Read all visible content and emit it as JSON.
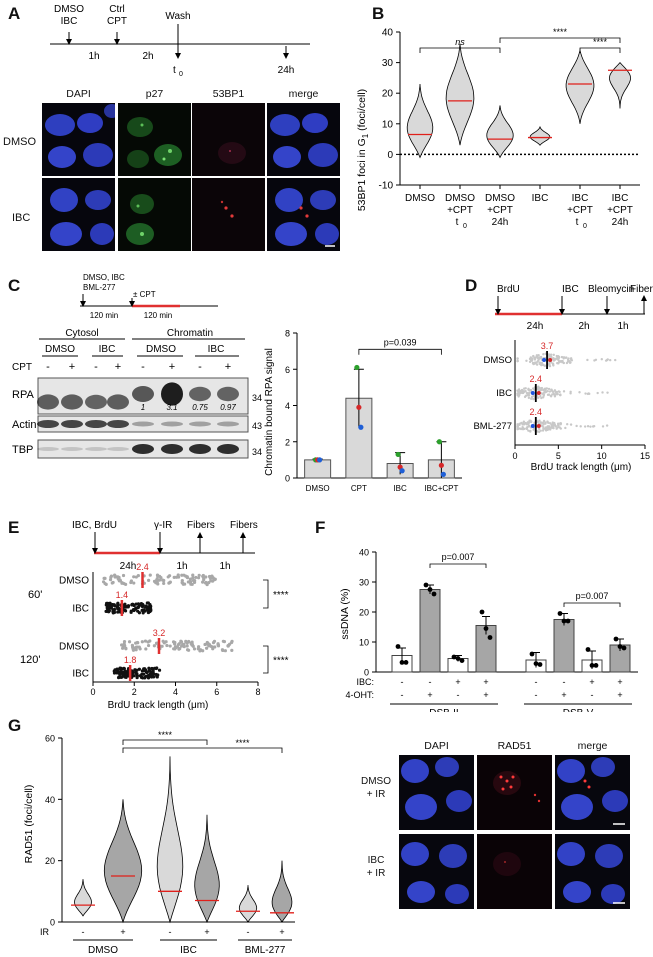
{
  "panels": {
    "A": {
      "letter": "A",
      "timeline": {
        "treat": [
          "DMSO",
          "IBC"
        ],
        "ctrl": [
          "Ctrl",
          "CPT"
        ],
        "wash": "Wash",
        "d1": "1h",
        "d2": "2h",
        "t0": "t",
        "t0_sub": "0",
        "t24": "24h"
      },
      "columns": [
        "DAPI",
        "p27",
        "53BP1",
        "merge"
      ],
      "rows": [
        "DMSO",
        "IBC"
      ]
    },
    "B": {
      "letter": "B",
      "ylabel": "53BP1 foci in G",
      "ylabel_sub": "1",
      "ylabel_tail": " (foci/cell)",
      "sig": [
        "ns",
        "****",
        "****"
      ]
    },
    "C": {
      "letter": "C",
      "timeline": {
        "treat": [
          "DMSO, IBC",
          "BML-277"
        ],
        "cpt": "± CPT",
        "d1": "120 min",
        "d2": "120 min"
      },
      "blot": {
        "fractions": [
          "Cytosol",
          "Chromatin"
        ],
        "conds": [
          "DMSO",
          "IBC",
          "DMSO",
          "IBC"
        ],
        "cpt_label": "CPT",
        "cpt_signs": [
          "-",
          "+",
          "-",
          "+",
          "-",
          "+",
          "-",
          "+"
        ],
        "rows": [
          "RPA",
          "Actin",
          "TBP"
        ],
        "mw": [
          "34",
          "43",
          "34"
        ],
        "quant": [
          "1",
          "3.1",
          "0.75",
          "0.97"
        ]
      },
      "bar_ylabel": "Chromatin bound RPA signal",
      "pval": "p=0.039"
    },
    "D": {
      "letter": "D",
      "timeline": {
        "a": "BrdU",
        "b": "IBC",
        "c": "Bleomycin",
        "d": "Fibers",
        "d1": "24h",
        "d2": "2h",
        "d3": "1h"
      },
      "xlabel": "BrdU track length (μm)"
    },
    "E": {
      "letter": "E",
      "timeline": {
        "a": "IBC, BrdU",
        "b": "γ-IR",
        "c": "Fibers",
        "d": "Fibers",
        "d1": "24h",
        "d2": "1h",
        "d3": "1h"
      },
      "groups": [
        "60'",
        "120'"
      ],
      "xlabel": "BrdU track length (μm)",
      "sig": [
        "****",
        "****"
      ]
    },
    "F": {
      "letter": "F",
      "ylabel": "ssDNA (%)",
      "pvals": [
        "p=0.007",
        "p=0.007"
      ],
      "row_labels": [
        "IBC:",
        "4-OHT:"
      ],
      "ibc_signs": [
        "-",
        "-",
        "+",
        "+",
        "-",
        "-",
        "+",
        "+"
      ],
      "oht_signs": [
        "-",
        "+",
        "-",
        "+",
        "-",
        "+",
        "-",
        "+"
      ],
      "groups": [
        "DSB-II",
        "DSB-V"
      ]
    },
    "G": {
      "letter": "G",
      "ylabel": "RAD51 (foci/cell)",
      "sig": [
        "****",
        "****"
      ],
      "ir_label": "IR",
      "ir_signs": [
        "-",
        "+",
        "-",
        "+",
        "-",
        "+"
      ],
      "groups": [
        "DMSO",
        "IBC",
        "BML-277"
      ],
      "columns": [
        "DAPI",
        "RAD51",
        "merge"
      ],
      "rows": [
        [
          "DMSO",
          "+ IR"
        ],
        [
          "IBC",
          "+ IR"
        ]
      ]
    }
  },
  "chart_data": [
    {
      "panel": "B",
      "type": "violin",
      "categories": [
        "DMSO",
        "DMSO +CPT t0",
        "DMSO +CPT 24h",
        "IBC",
        "IBC +CPT t0",
        "IBC +CPT 24h"
      ],
      "tick_labels": [
        [
          "DMSO"
        ],
        [
          "DMSO",
          "+CPT",
          "t"
        ],
        [
          "DMSO",
          "+CPT",
          "24h"
        ],
        [
          "IBC"
        ],
        [
          "IBC",
          "+CPT",
          "t"
        ],
        [
          "IBC",
          "+CPT",
          "24h"
        ]
      ],
      "medians": [
        6.5,
        17.5,
        5,
        5.5,
        23,
        27.5
      ],
      "ranges": [
        [
          -1,
          23
        ],
        [
          3,
          36
        ],
        [
          -1,
          16
        ],
        [
          3,
          9
        ],
        [
          10,
          34
        ],
        [
          15,
          30
        ]
      ],
      "ylim": [
        -10,
        40
      ],
      "yticks": [
        -10,
        0,
        10,
        20,
        30,
        40
      ],
      "colors": {
        "fill": "#d9d9d9",
        "median": "#e0201b"
      }
    },
    {
      "panel": "C",
      "type": "bar",
      "categories": [
        "DMSO",
        "CPT",
        "IBC",
        "IBC+CPT"
      ],
      "values": [
        1.0,
        4.4,
        0.8,
        1.0
      ],
      "errors": [
        0.05,
        1.6,
        0.6,
        1.0
      ],
      "points": [
        [
          1.0,
          1.0,
          1.0
        ],
        [
          6.1,
          3.9,
          2.8
        ],
        [
          1.3,
          0.6,
          0.4
        ],
        [
          2.0,
          0.7,
          0.2
        ]
      ],
      "point_colors": [
        "#2ca02c",
        "#d62728",
        "#1f5fd6"
      ],
      "ylim": [
        0,
        8
      ],
      "yticks": [
        0,
        2,
        4,
        6,
        8
      ]
    },
    {
      "panel": "D",
      "type": "scatter",
      "categories": [
        "DMSO",
        "IBC",
        "BML-277"
      ],
      "medians": [
        3.7,
        2.4,
        2.4
      ],
      "xlim": [
        0,
        15
      ],
      "xticks": [
        0,
        5,
        10,
        15
      ]
    },
    {
      "panel": "E",
      "type": "scatter",
      "categories": [
        "DMSO 60'",
        "IBC 60'",
        "DMSO 120'",
        "IBC 120'"
      ],
      "medians": [
        2.4,
        1.4,
        3.2,
        1.8
      ],
      "xlim": [
        0,
        8
      ],
      "xticks": [
        0,
        2,
        4,
        6,
        8
      ]
    },
    {
      "panel": "F",
      "type": "bar",
      "categories": [
        "DSB-II -/-",
        "DSB-II -/+",
        "DSB-II +/-",
        "DSB-II +/+",
        "DSB-V -/-",
        "DSB-V -/+",
        "DSB-V +/-",
        "DSB-V +/+"
      ],
      "values": [
        5.5,
        27.5,
        4.5,
        15.5,
        4,
        17.5,
        4,
        9
      ],
      "errors": [
        2.5,
        1.5,
        1,
        3,
        2.5,
        2,
        3,
        2
      ],
      "points": [
        [
          8.5,
          3.2,
          3.2
        ],
        [
          29,
          27.5,
          26
        ],
        [
          5,
          4.5,
          3.8
        ],
        [
          20,
          14.5,
          11.5
        ],
        [
          6,
          2.8,
          2.5
        ],
        [
          19.5,
          17,
          17
        ],
        [
          7.5,
          2.2,
          2.2
        ],
        [
          11,
          8.5,
          8
        ]
      ],
      "ylim": [
        0,
        40
      ],
      "yticks": [
        0,
        10,
        20,
        30,
        40
      ]
    },
    {
      "panel": "G",
      "type": "violin",
      "categories": [
        "DMSO -",
        "DMSO +",
        "IBC -",
        "IBC +",
        "BML-277 -",
        "BML-277 +"
      ],
      "medians": [
        5.5,
        15,
        10,
        7,
        3.5,
        3
      ],
      "ranges": [
        [
          2,
          14
        ],
        [
          0,
          40
        ],
        [
          0,
          54
        ],
        [
          0,
          35
        ],
        [
          0,
          12
        ],
        [
          0,
          20
        ]
      ],
      "ylim": [
        0,
        60
      ],
      "yticks": [
        0,
        20,
        40,
        60
      ],
      "colors": {
        "fill_minus": "#d9d9d9",
        "fill_plus": "#a6a6a6",
        "median": "#e0201b"
      }
    }
  ]
}
